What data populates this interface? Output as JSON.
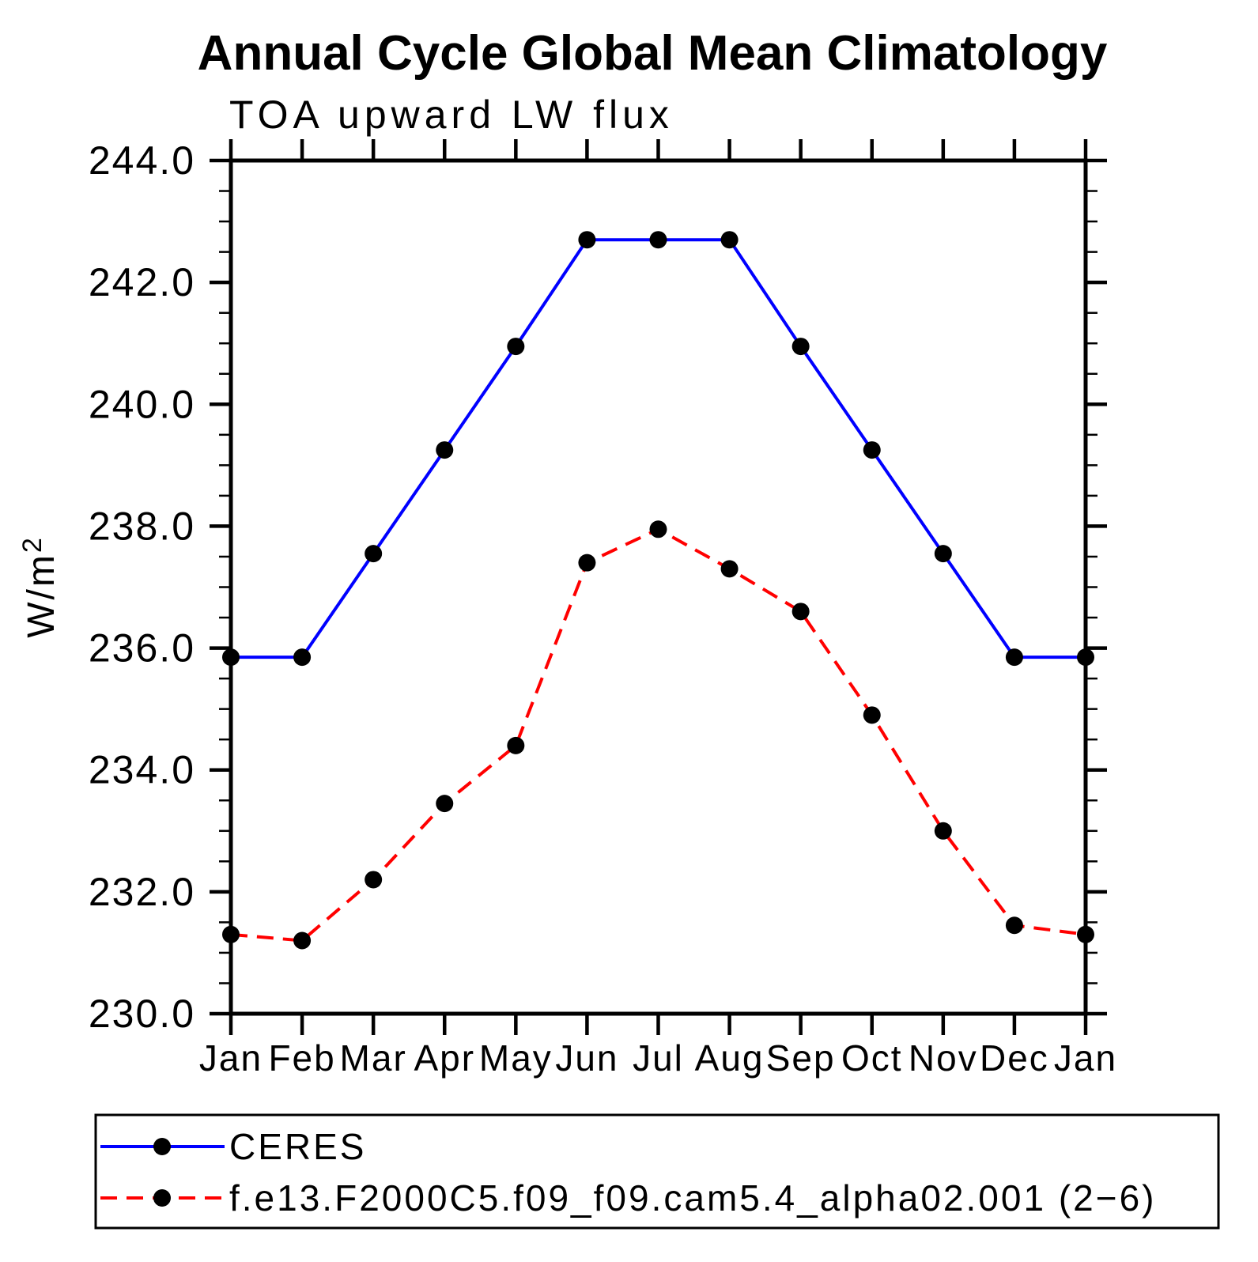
{
  "title": "Annual Cycle Global Mean Climatology",
  "subtitle": "TOA upward LW flux",
  "chart_data": {
    "type": "line",
    "title": "Annual Cycle Global Mean Climatology",
    "subtitle": "TOA upward LW flux",
    "xlabel": "",
    "ylabel": "W/m²",
    "categories": [
      "Jan",
      "Feb",
      "Mar",
      "Apr",
      "May",
      "Jun",
      "Jul",
      "Aug",
      "Sep",
      "Oct",
      "Nov",
      "Dec",
      "Jan"
    ],
    "ylim": [
      230.0,
      244.0
    ],
    "ytick_major_step": 2.0,
    "ytick_minor_step": 0.5,
    "ytick_labels": [
      "230.0",
      "232.0",
      "234.0",
      "236.0",
      "238.0",
      "240.0",
      "242.0",
      "244.0"
    ],
    "grid": false,
    "legend_position": "bottom-left-box",
    "axis_color": "#000000",
    "marker_color": "#000000",
    "series": [
      {
        "name": "CERES",
        "color": "#0000ff",
        "line_style": "solid",
        "marker": "circle",
        "values": [
          235.85,
          235.85,
          237.55,
          239.25,
          240.95,
          242.7,
          242.7,
          242.7,
          240.95,
          239.25,
          237.55,
          235.85,
          235.85
        ]
      },
      {
        "name": "f.e13.F2000C5.f09_f09.cam5.4_alpha02.001 (2−6)",
        "color": "#ff0000",
        "line_style": "dashed",
        "marker": "circle",
        "values": [
          231.3,
          231.2,
          232.2,
          233.45,
          234.4,
          237.4,
          237.95,
          237.3,
          236.6,
          234.9,
          233.0,
          231.45,
          231.3
        ]
      }
    ]
  }
}
